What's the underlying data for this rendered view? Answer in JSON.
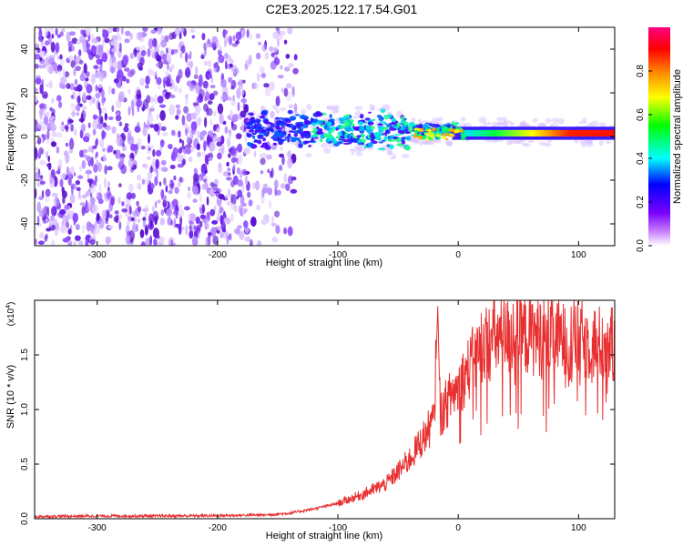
{
  "figure_title": "C2E3.2025.122.17.54.G01",
  "chart_data": [
    {
      "type": "heatmap",
      "title": "C2E3.2025.122.17.54.G01",
      "xlabel": "Height of straight line (km)",
      "ylabel": "Frequency (Hz)",
      "xlim": [
        -352,
        130
      ],
      "ylim": [
        -50,
        50
      ],
      "x_ticks": [
        -300,
        -200,
        -100,
        0,
        100
      ],
      "x_tick_labels": [
        "-300",
        "-200",
        "-100",
        "0",
        "100"
      ],
      "y_ticks": [
        -40,
        -20,
        0,
        20,
        40
      ],
      "y_tick_labels": [
        "-40",
        "-20",
        "0",
        "20",
        "40"
      ],
      "colorbar": {
        "label": "Normalized spectral amplitude",
        "range": [
          0,
          1
        ],
        "ticks": [
          0.0,
          0.2,
          0.4,
          0.6,
          0.8
        ],
        "tick_labels": [
          "0.0",
          "0.2",
          "0.4",
          "0.6",
          "0.8"
        ],
        "colors": [
          "#ffffff",
          "#cc88ff",
          "#7a00ff",
          "#0000ff",
          "#00ffff",
          "#00ff00",
          "#ffff00",
          "#ff8000",
          "#ff0000",
          "#ff0080"
        ]
      },
      "regions": [
        {
          "x_range": [
            -352,
            -145
          ],
          "freq_range": [
            -50,
            50
          ],
          "amplitude": 0.2,
          "note_color": "#8a3ff0"
        },
        {
          "x_range": [
            -175,
            -40
          ],
          "freq_range": [
            -6,
            10
          ],
          "amplitude": 0.4
        },
        {
          "x_range": [
            -40,
            0
          ],
          "freq_range": [
            -3,
            5
          ],
          "amplitude": 0.6
        },
        {
          "x_range": [
            0,
            130
          ],
          "freq_range": [
            0,
            3
          ],
          "amplitude": 0.9
        }
      ],
      "grid": false
    },
    {
      "type": "line",
      "xlabel": "Height of straight line (km)",
      "ylabel": "SNR (10 * v/v)",
      "y_multiplier_label": "(x10",
      "y_multiplier_exp": "4",
      "xlim": [
        -352,
        130
      ],
      "ylim": [
        0,
        20000
      ],
      "x_ticks": [
        -300,
        -200,
        -100,
        0,
        100
      ],
      "x_tick_labels": [
        "-300",
        "-200",
        "-100",
        "0",
        "100"
      ],
      "y_ticks": [
        0,
        5000,
        10000,
        15000
      ],
      "y_tick_labels": [
        "0.0",
        "0.5",
        "1.0",
        "1.5"
      ],
      "series": [
        {
          "color": "#e83030",
          "x": [
            -352,
            -300,
            -250,
            -200,
            -160,
            -140,
            -120,
            -100,
            -80,
            -60,
            -50,
            -40,
            -30,
            -20,
            -17,
            -15,
            -10,
            -5,
            0,
            10,
            20,
            30,
            50,
            70,
            90,
            110,
            130
          ],
          "y": [
            200,
            250,
            250,
            280,
            350,
            500,
            900,
            1400,
            2200,
            3200,
            4300,
            5500,
            7200,
            9000,
            19500,
            9500,
            10500,
            11500,
            12000,
            14000,
            16000,
            16500,
            16800,
            16800,
            16500,
            16200,
            15800
          ]
        }
      ],
      "grid": false
    }
  ]
}
